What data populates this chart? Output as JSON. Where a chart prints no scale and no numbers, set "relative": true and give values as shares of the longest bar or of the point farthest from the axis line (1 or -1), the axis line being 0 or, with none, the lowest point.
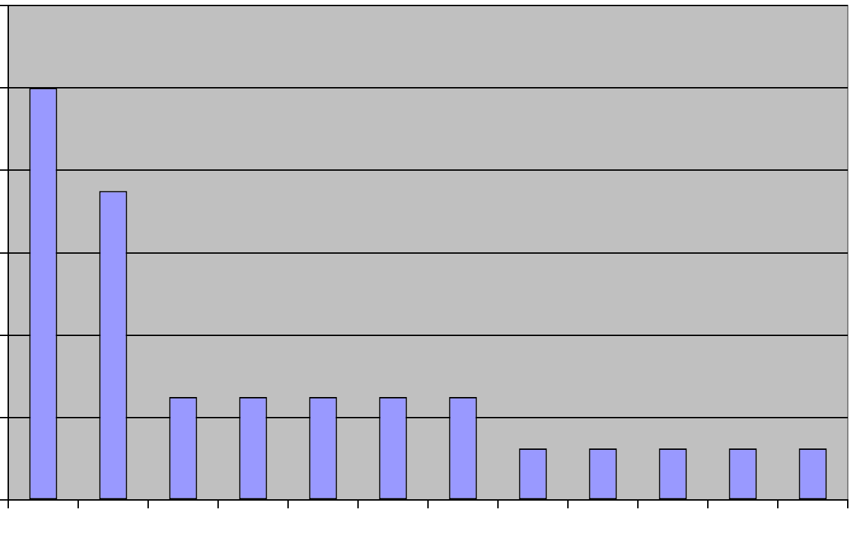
{
  "chart_data": {
    "type": "bar",
    "relative": true,
    "grid": "y",
    "categories": [
      null,
      null,
      null,
      null,
      null,
      null,
      null,
      null,
      null,
      null,
      null,
      null
    ],
    "values": [
      1,
      0.75,
      0.25,
      0.25,
      0.25,
      0.25,
      0.25,
      0.125,
      0.125,
      0.125,
      0.125,
      0.125
    ],
    "color": "#9999ff"
  }
}
